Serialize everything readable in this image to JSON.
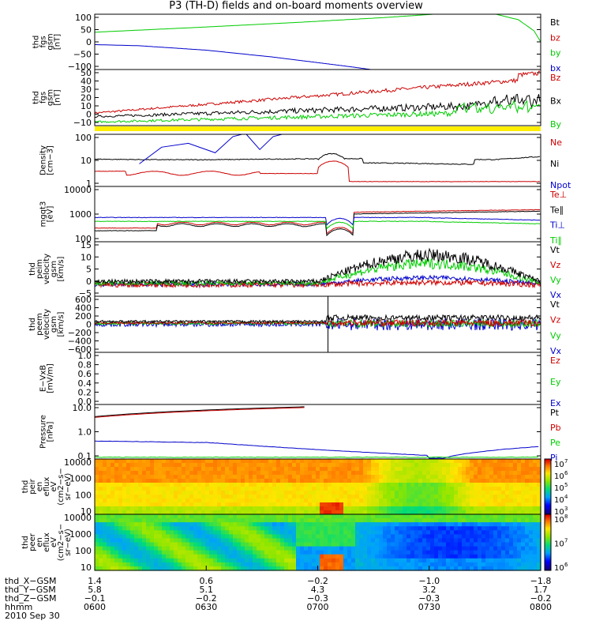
{
  "title": "P3 (TH-D) fields and on-board moments overview",
  "colors": {
    "black": "#000000",
    "red": "#cc0000",
    "green": "#00cc00",
    "blue": "#0000cc",
    "yellow": "#ffee00"
  },
  "chart_data": [
    {
      "type": "line",
      "ylabel": [
        "thd",
        "fgs",
        "gsm",
        "[nT]"
      ],
      "yticks": [
        "100",
        "50",
        "0",
        "−50",
        "−100"
      ],
      "yrange": [
        -100,
        100
      ],
      "series": [
        {
          "name": "Bt",
          "color": "black"
        },
        {
          "name": "bz",
          "color": "red"
        },
        {
          "name": "by",
          "color": "green"
        },
        {
          "name": "bx",
          "color": "blue"
        }
      ],
      "curves": {
        "green": [
          [
            0,
            35
          ],
          [
            0.2,
            50
          ],
          [
            0.45,
            70
          ],
          [
            0.65,
            88
          ],
          [
            0.76,
            100
          ]
        ],
        "blue": [
          [
            0,
            -10
          ],
          [
            0.1,
            -14
          ],
          [
            0.25,
            -30
          ],
          [
            0.4,
            -55
          ],
          [
            0.55,
            -85
          ],
          [
            0.62,
            -100
          ]
        ],
        "green2": [
          [
            0.9,
            100
          ],
          [
            0.95,
            80
          ],
          [
            0.985,
            40
          ],
          [
            1,
            0
          ]
        ]
      }
    },
    {
      "type": "line",
      "ylabel": [
        "thd",
        "fgs",
        "gsm",
        "[nT]"
      ],
      "yticks": [
        "50",
        "40",
        "30",
        "20",
        "10",
        "0",
        "−10"
      ],
      "yrange": [
        -12,
        50
      ],
      "series": [
        {
          "name": "Bz",
          "color": "red"
        },
        {
          "name": "Bx",
          "color": "black"
        },
        {
          "name": "By",
          "color": "green"
        }
      ]
    },
    {
      "type": "line",
      "ylabel": [
        "Density",
        "[cm−3]"
      ],
      "yticks": [
        "100",
        "10",
        "1"
      ],
      "ylog": [
        0.3,
        200
      ],
      "series": [
        {
          "name": "Ne",
          "color": "red"
        },
        {
          "name": "Ni",
          "color": "black"
        },
        {
          "name": "Npot",
          "color": "blue"
        }
      ]
    },
    {
      "type": "line",
      "ylabel": [
        "mgqt3",
        "[eV]"
      ],
      "yticks": [
        "10000",
        "1000",
        "100"
      ],
      "ylog": [
        30,
        20000
      ],
      "series": [
        {
          "name": "Te⊥",
          "color": "red"
        },
        {
          "name": "Te∥",
          "color": "black"
        },
        {
          "name": "Ti⊥",
          "color": "blue"
        },
        {
          "name": "Ti∥",
          "color": "green"
        }
      ]
    },
    {
      "type": "line",
      "ylabel": [
        "thd",
        "peim",
        "velocity",
        "gsm",
        "[km/s]"
      ],
      "yticks": [
        "15",
        "10",
        "5",
        "0",
        "−5"
      ],
      "yrange": [
        -5,
        20
      ],
      "series": [
        {
          "name": "Vt",
          "color": "black"
        },
        {
          "name": "Vz",
          "color": "red"
        },
        {
          "name": "Vy",
          "color": "green"
        },
        {
          "name": "Vx",
          "color": "blue"
        }
      ]
    },
    {
      "type": "line",
      "ylabel": [
        "thd",
        "peem",
        "velocity",
        "gsm",
        "[km/s]"
      ],
      "yticks": [
        "600",
        "400",
        "200",
        "0",
        "−200",
        "−400",
        "−600"
      ],
      "yrange": [
        -600,
        600
      ],
      "series": [
        {
          "name": "Vt",
          "color": "black"
        },
        {
          "name": "Vz",
          "color": "red"
        },
        {
          "name": "Vy",
          "color": "green"
        },
        {
          "name": "Vx",
          "color": "blue"
        }
      ]
    },
    {
      "type": "line",
      "ylabel": [
        "E−VxB",
        "[mV/m]"
      ],
      "yticks": [
        "1.0",
        "0.8",
        "0.6",
        "0.4",
        "0.2",
        "0.0"
      ],
      "yrange": [
        0,
        1
      ],
      "series": [
        {
          "name": "Ez",
          "color": "red"
        },
        {
          "name": "Ey",
          "color": "green"
        },
        {
          "name": "Ex",
          "color": "blue"
        }
      ]
    },
    {
      "type": "line",
      "ylabel": [
        "Pressure",
        "[nPa]"
      ],
      "yticks": [
        "10.0",
        "1.0",
        "0.1"
      ],
      "ylog": [
        0.05,
        40
      ],
      "series": [
        {
          "name": "Pt",
          "color": "black"
        },
        {
          "name": "Pb",
          "color": "red"
        },
        {
          "name": "Pe",
          "color": "green"
        },
        {
          "name": "Pi",
          "color": "blue"
        }
      ]
    },
    {
      "type": "heatmap",
      "ylabel": [
        "thd",
        "peir",
        "en",
        "eflux",
        "eV",
        "(cm2−s−",
        "sr−eV)"
      ],
      "yticks": [
        "10000",
        "1000",
        "100",
        "10"
      ],
      "cbar": [
        "10",
        "10",
        "10",
        "10",
        "10"
      ],
      "cbar_exp": [
        "7",
        "6",
        "5",
        "4",
        "3"
      ]
    },
    {
      "type": "heatmap",
      "ylabel": [
        "thd",
        "peer",
        "en",
        "eflux",
        "eV",
        "(cm2−s−",
        "sr−eV)"
      ],
      "yticks": [
        "10000",
        "1000",
        "100",
        "10"
      ],
      "cbar": [
        "10",
        "10",
        "10"
      ],
      "cbar_exp": [
        "8",
        "7",
        "6"
      ]
    }
  ],
  "xaxis": {
    "rows": [
      {
        "label": "thd_X−GSM",
        "values": [
          "1.4",
          "0.6",
          "−0.2",
          "−1.0",
          "−1.8"
        ]
      },
      {
        "label": "thd_Y−GSM",
        "values": [
          "5.8",
          "5.1",
          "4.3",
          "3.2",
          "1.7"
        ]
      },
      {
        "label": "thd_Z−GSM",
        "values": [
          "−0.1",
          "−0.2",
          "−0.3",
          "−0.3",
          "−0.2"
        ]
      },
      {
        "label": "hhmm",
        "values": [
          "0600",
          "0630",
          "0700",
          "0730",
          "0800"
        ]
      }
    ],
    "date": "2010 Sep 30"
  }
}
